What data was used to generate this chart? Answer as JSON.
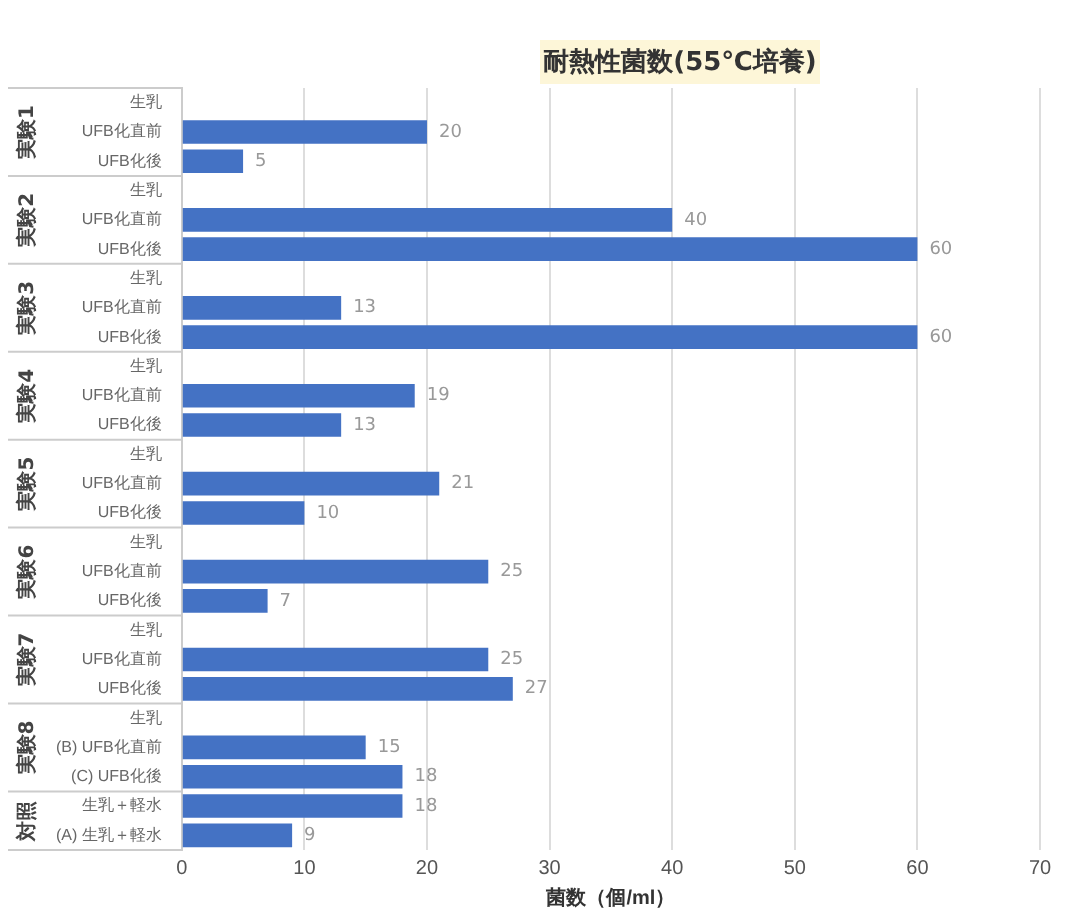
{
  "chart_data": {
    "type": "bar",
    "orientation": "horizontal",
    "title": "耐熱性菌数(55℃培養)",
    "xlabel": "菌数（個/ml）",
    "categories": [
      "生乳",
      "UFB化直前",
      "UFB化後",
      "生乳",
      "UFB化直前",
      "UFB化後",
      "生乳",
      "UFB化直前",
      "UFB化後",
      "生乳",
      "UFB化直前",
      "UFB化後",
      "生乳",
      "UFB化直前",
      "UFB化後",
      "生乳",
      "UFB化直前",
      "UFB化後",
      "生乳",
      "UFB化直前",
      "UFB化後",
      "生乳",
      "(B) UFB化直前",
      "(C) UFB化後",
      "生乳＋軽水",
      "(A) 生乳＋軽水"
    ],
    "values": [
      null,
      20,
      5,
      null,
      40,
      60,
      null,
      13,
      60,
      null,
      19,
      13,
      null,
      21,
      10,
      null,
      25,
      7,
      null,
      25,
      27,
      null,
      15,
      18,
      18,
      9
    ],
    "color": "#4472c4",
    "xlim": [
      0,
      70
    ],
    "xticks": [
      0,
      10,
      20,
      30,
      40,
      50,
      60,
      70
    ],
    "grid": "x",
    "data_labels": true,
    "annotations": [
      "実験1",
      "実験2",
      "実験3",
      "実験4",
      "実験5",
      "実験6",
      "実験7",
      "実験8",
      "対照"
    ]
  }
}
